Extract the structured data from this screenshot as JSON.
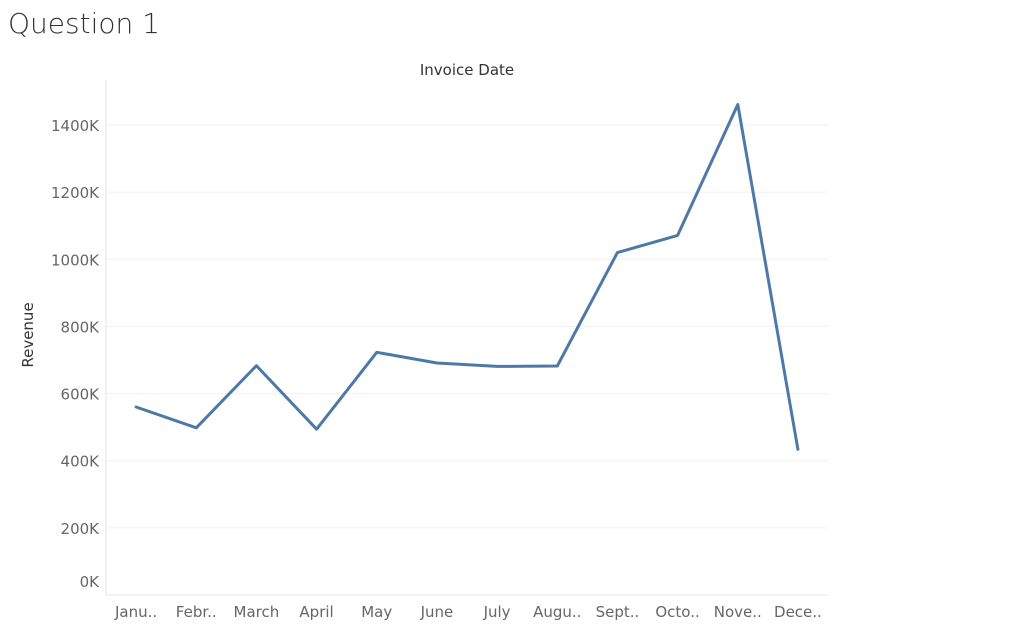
{
  "page": {
    "title": "Question 1"
  },
  "chart_data": {
    "type": "line",
    "title": "Invoice Date",
    "xlabel": "",
    "ylabel": "Revenue",
    "categories": [
      "Janu..",
      "Febr..",
      "March",
      "April",
      "May",
      "June",
      "July",
      "Augu..",
      "Sept..",
      "Octo..",
      "Nove..",
      "Dece.."
    ],
    "series": [
      {
        "values": [
          560000,
          498000,
          683000,
          494000,
          723000,
          691000,
          681000,
          682000,
          1020000,
          1071000,
          1461000,
          434000
        ],
        "color": "#4e79a7"
      }
    ],
    "ylim": [
      0,
      1500000
    ],
    "yticks": [
      0,
      200000,
      400000,
      600000,
      800000,
      1000000,
      1200000,
      1400000
    ],
    "ytick_labels": [
      "0K",
      "200K",
      "400K",
      "600K",
      "800K",
      "1000K",
      "1200K",
      "1400K"
    ],
    "grid": true,
    "legend": "none"
  }
}
